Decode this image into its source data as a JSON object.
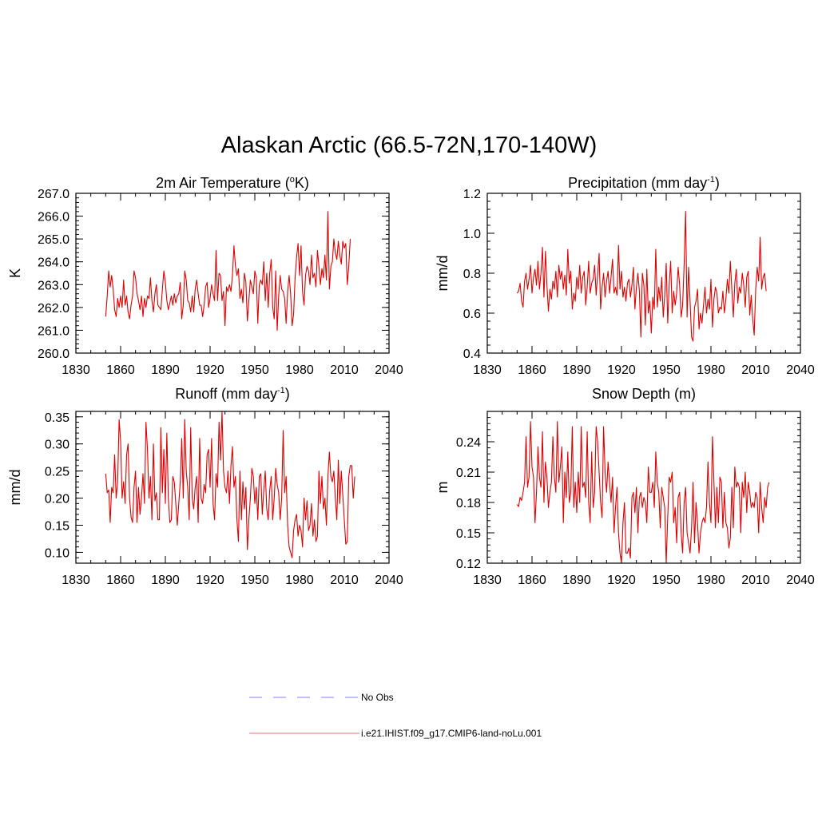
{
  "title": "Alaskan Arctic (66.5-72N,170-140W)",
  "colors": {
    "model_line": "#e00000",
    "obs_line": "#9999ee",
    "axis": "#000000"
  },
  "legend": [
    {
      "label": "No Obs",
      "style": "dashed",
      "color": "#9999ee"
    },
    {
      "label": "i.e21.IHIST.f09_g17.CMIP6-land-noLu.001",
      "style": "solid",
      "color": "#e00000"
    }
  ],
  "chart_data": [
    {
      "type": "line",
      "title_main": "2m Air Temperature (",
      "title_sup": "o",
      "title_tail": "K)",
      "ylabel": "K",
      "xlim": [
        1830,
        2040
      ],
      "ylim": [
        260,
        267
      ],
      "xticks": [
        "1830",
        "1860",
        "1890",
        "1920",
        "1950",
        "1980",
        "2010",
        "2040"
      ],
      "yticks": [
        "260.0",
        "261.0",
        "262.0",
        "263.0",
        "264.0",
        "265.0",
        "266.0",
        "267.0"
      ],
      "x_start": 1850,
      "series": [
        {
          "values": [
            261.6,
            262.5,
            263.6,
            262.9,
            263.4,
            262.8,
            261.9,
            261.6,
            262.4,
            262.0,
            262.5,
            262.0,
            263.2,
            262.1,
            262.5,
            261.8,
            261.5,
            262.1,
            262.5,
            263.6,
            263.3,
            262.6,
            262.3,
            261.9,
            262.5,
            261.6,
            262.4,
            262.0,
            262.5,
            262.4,
            263.3,
            262.3,
            261.8,
            262.6,
            263.0,
            262.1,
            262.0,
            261.9,
            262.8,
            263.6,
            263.1,
            262.3,
            261.9,
            262.2,
            262.5,
            262.1,
            262.6,
            262.2,
            262.5,
            262.6,
            263.1,
            261.5,
            262.1,
            263.6,
            263.2,
            262.3,
            262.2,
            261.8,
            262.5,
            261.8,
            262.8,
            263.2,
            262.6,
            262.1,
            262.1,
            261.6,
            262.1,
            262.9,
            263.1,
            262.0,
            262.4,
            263.0,
            262.6,
            262.3,
            264.5,
            262.3,
            263.5,
            263.4,
            262.3,
            262.7,
            261.2,
            262.9,
            262.7,
            263.0,
            262.7,
            263.4,
            264.7,
            263.8,
            263.4,
            263.7,
            262.4,
            262.8,
            262.2,
            263.5,
            263.1,
            261.4,
            262.3,
            263.2,
            262.9,
            262.6,
            263.6,
            263.3,
            261.3,
            263.0,
            263.2,
            263.0,
            264.0,
            262.3,
            263.5,
            262.0,
            263.5,
            264.1,
            262.0,
            261.5,
            263.6,
            261.0,
            262.5,
            263.4,
            262.8,
            262.7,
            262.4,
            261.3,
            262.7,
            263.4,
            262.6,
            261.2,
            261.7,
            263.3,
            264.2,
            264.8,
            263.4,
            264.7,
            262.7,
            262.1,
            263.4,
            263.8,
            263.6,
            263.0,
            264.3,
            263.3,
            263.5,
            262.9,
            264.5,
            263.8,
            263.0,
            263.7,
            263.3,
            264.3,
            263.2,
            266.2,
            262.8,
            263.8,
            264.0,
            265.0,
            264.4,
            264.1,
            264.9,
            264.3,
            263.9,
            264.9,
            264.6,
            264.8,
            263.0,
            263.8,
            265.0
          ]
        }
      ]
    },
    {
      "type": "line",
      "title_main": "Precipitation (mm day",
      "title_sup": "-1",
      "title_tail": ")",
      "ylabel": "mm/d",
      "xlim": [
        1830,
        2040
      ],
      "ylim": [
        0.4,
        1.2
      ],
      "xticks": [
        "1830",
        "1860",
        "1890",
        "1920",
        "1950",
        "1980",
        "2010",
        "2040"
      ],
      "yticks": [
        "0.4",
        "0.6",
        "0.8",
        "1.0",
        "1.2"
      ],
      "x_start": 1850,
      "series": [
        {
          "values": [
            0.7,
            0.71,
            0.75,
            0.66,
            0.63,
            0.76,
            0.8,
            0.72,
            0.77,
            0.84,
            0.7,
            0.78,
            0.82,
            0.74,
            0.86,
            0.72,
            0.8,
            0.93,
            0.68,
            0.91,
            0.74,
            0.61,
            0.72,
            0.67,
            0.76,
            0.72,
            0.81,
            0.68,
            0.84,
            0.77,
            0.81,
            0.72,
            0.79,
            0.69,
            0.92,
            0.75,
            0.81,
            0.62,
            0.7,
            0.66,
            0.78,
            0.72,
            0.84,
            0.7,
            0.78,
            0.81,
            0.64,
            0.73,
            0.86,
            0.7,
            0.75,
            0.77,
            0.84,
            0.69,
            0.79,
            0.9,
            0.62,
            0.73,
            0.8,
            0.68,
            0.76,
            0.81,
            0.7,
            0.78,
            0.87,
            0.7,
            0.73,
            0.69,
            0.94,
            0.72,
            0.81,
            0.68,
            0.73,
            0.66,
            0.75,
            0.77,
            0.68,
            0.74,
            0.83,
            0.62,
            0.73,
            0.8,
            0.71,
            0.48,
            0.8,
            0.74,
            0.54,
            0.82,
            0.6,
            0.66,
            0.5,
            0.68,
            0.62,
            0.92,
            0.63,
            0.73,
            0.66,
            0.78,
            0.58,
            0.69,
            0.85,
            0.55,
            0.74,
            0.86,
            0.6,
            0.71,
            0.64,
            0.7,
            0.83,
            0.74,
            0.58,
            0.64,
            0.84,
            1.11,
            0.58,
            0.83,
            0.66,
            0.48,
            0.46,
            0.63,
            0.66,
            0.72,
            0.52,
            0.6,
            0.55,
            0.64,
            0.73,
            0.6,
            0.67,
            0.62,
            0.77,
            0.53,
            0.67,
            0.73,
            0.7,
            0.6,
            0.63,
            0.62,
            0.71,
            0.6,
            0.67,
            0.77,
            0.7,
            0.86,
            0.72,
            0.58,
            0.75,
            0.82,
            0.65,
            0.73,
            0.7,
            0.8,
            0.74,
            0.63,
            0.78,
            0.81,
            0.59,
            0.69,
            0.57,
            0.49,
            0.72,
            0.83,
            0.76,
            0.98,
            0.72,
            0.78,
            0.8,
            0.71
          ]
        }
      ]
    },
    {
      "type": "line",
      "title_main": "Runoff (mm day",
      "title_sup": "-1",
      "title_tail": ")",
      "ylabel": "mm/d",
      "xlim": [
        1830,
        2040
      ],
      "ylim": [
        0.08,
        0.36
      ],
      "xticks": [
        "1830",
        "1860",
        "1890",
        "1920",
        "1950",
        "1980",
        "2010",
        "2040"
      ],
      "yticks": [
        "0.10",
        "0.15",
        "0.20",
        "0.25",
        "0.30",
        "0.35"
      ],
      "x_start": 1850,
      "series": [
        {
          "values": [
            0.245,
            0.21,
            0.215,
            0.155,
            0.22,
            0.21,
            0.28,
            0.2,
            0.23,
            0.345,
            0.305,
            0.2,
            0.23,
            0.19,
            0.28,
            0.3,
            0.2,
            0.165,
            0.155,
            0.22,
            0.25,
            0.155,
            0.22,
            0.17,
            0.2,
            0.245,
            0.19,
            0.34,
            0.29,
            0.2,
            0.24,
            0.16,
            0.3,
            0.195,
            0.21,
            0.16,
            0.16,
            0.33,
            0.21,
            0.29,
            0.19,
            0.32,
            0.2,
            0.155,
            0.16,
            0.24,
            0.23,
            0.19,
            0.15,
            0.19,
            0.23,
            0.31,
            0.2,
            0.345,
            0.25,
            0.22,
            0.16,
            0.33,
            0.2,
            0.18,
            0.22,
            0.24,
            0.155,
            0.31,
            0.2,
            0.19,
            0.225,
            0.21,
            0.28,
            0.29,
            0.22,
            0.31,
            0.19,
            0.16,
            0.245,
            0.22,
            0.34,
            0.27,
            0.36,
            0.25,
            0.22,
            0.21,
            0.25,
            0.19,
            0.26,
            0.295,
            0.22,
            0.24,
            0.16,
            0.12,
            0.25,
            0.16,
            0.23,
            0.18,
            0.22,
            0.105,
            0.16,
            0.2,
            0.255,
            0.24,
            0.19,
            0.22,
            0.16,
            0.24,
            0.245,
            0.17,
            0.215,
            0.25,
            0.18,
            0.16,
            0.215,
            0.24,
            0.16,
            0.2,
            0.255,
            0.225,
            0.21,
            0.16,
            0.2,
            0.325,
            0.21,
            0.24,
            0.15,
            0.11,
            0.1,
            0.09,
            0.14,
            0.16,
            0.17,
            0.13,
            0.15,
            0.14,
            0.11,
            0.2,
            0.16,
            0.195,
            0.14,
            0.15,
            0.19,
            0.13,
            0.16,
            0.12,
            0.13,
            0.25,
            0.19,
            0.24,
            0.18,
            0.2,
            0.15,
            0.24,
            0.285,
            0.24,
            0.23,
            0.25,
            0.2,
            0.16,
            0.27,
            0.19,
            0.25,
            0.205,
            0.16,
            0.115,
            0.12,
            0.24,
            0.26,
            0.26,
            0.2,
            0.24
          ]
        }
      ]
    },
    {
      "type": "line",
      "title_main": "Snow Depth (m)",
      "title_sup": "",
      "title_tail": "",
      "ylabel": "m",
      "xlim": [
        1830,
        2040
      ],
      "ylim": [
        0.12,
        0.27
      ],
      "xticks": [
        "1830",
        "1860",
        "1890",
        "1920",
        "1950",
        "1980",
        "2010",
        "2040"
      ],
      "yticks": [
        "0.12",
        "0.15",
        "0.18",
        "0.21",
        "0.24"
      ],
      "x_start": 1850,
      "series": [
        {
          "values": [
            0.178,
            0.176,
            0.185,
            0.182,
            0.19,
            0.2,
            0.245,
            0.195,
            0.205,
            0.26,
            0.215,
            0.205,
            0.16,
            0.19,
            0.235,
            0.205,
            0.195,
            0.25,
            0.18,
            0.22,
            0.205,
            0.175,
            0.19,
            0.2,
            0.245,
            0.205,
            0.19,
            0.26,
            0.2,
            0.215,
            0.235,
            0.16,
            0.21,
            0.185,
            0.23,
            0.18,
            0.19,
            0.255,
            0.175,
            0.2,
            0.17,
            0.21,
            0.18,
            0.255,
            0.195,
            0.2,
            0.185,
            0.25,
            0.18,
            0.16,
            0.23,
            0.175,
            0.19,
            0.255,
            0.24,
            0.21,
            0.18,
            0.165,
            0.255,
            0.21,
            0.19,
            0.22,
            0.2,
            0.18,
            0.205,
            0.15,
            0.175,
            0.195,
            0.15,
            0.13,
            0.12,
            0.16,
            0.18,
            0.13,
            0.13,
            0.135,
            0.125,
            0.185,
            0.19,
            0.17,
            0.195,
            0.15,
            0.185,
            0.19,
            0.175,
            0.185,
            0.18,
            0.16,
            0.215,
            0.19,
            0.19,
            0.2,
            0.175,
            0.23,
            0.2,
            0.19,
            0.155,
            0.195,
            0.185,
            0.175,
            0.12,
            0.165,
            0.205,
            0.2,
            0.21,
            0.16,
            0.175,
            0.14,
            0.185,
            0.19,
            0.15,
            0.13,
            0.18,
            0.195,
            0.15,
            0.14,
            0.13,
            0.155,
            0.2,
            0.14,
            0.18,
            0.16,
            0.13,
            0.15,
            0.16,
            0.165,
            0.16,
            0.175,
            0.22,
            0.18,
            0.16,
            0.245,
            0.2,
            0.155,
            0.195,
            0.16,
            0.205,
            0.2,
            0.155,
            0.19,
            0.16,
            0.155,
            0.135,
            0.145,
            0.195,
            0.155,
            0.215,
            0.195,
            0.2,
            0.195,
            0.15,
            0.2,
            0.185,
            0.21,
            0.17,
            0.2,
            0.19,
            0.175,
            0.18,
            0.175,
            0.19,
            0.185,
            0.15,
            0.2,
            0.175,
            0.16,
            0.185,
            0.175,
            0.195,
            0.2
          ]
        }
      ]
    }
  ]
}
